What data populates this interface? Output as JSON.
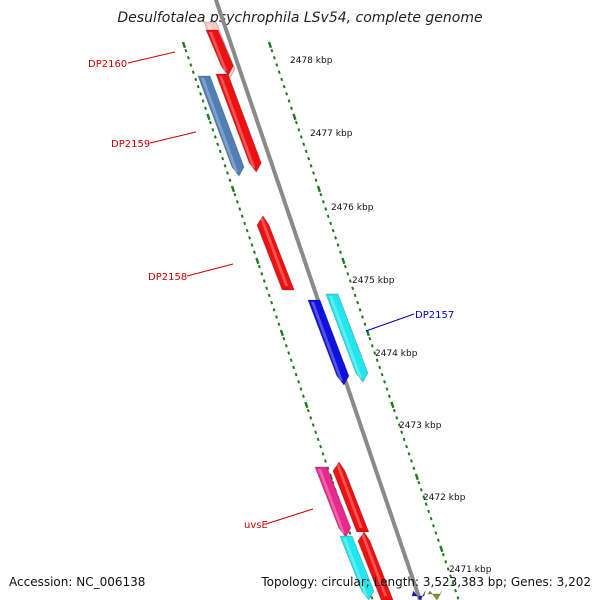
{
  "title": "Desulfotalea psychrophila LSv54, complete genome",
  "footer": {
    "accession": "Accession: NC_006138",
    "summary": "Topology: circular; Length: 3,523,383 bp; Genes: 3,202"
  },
  "colors": {
    "backbone": "#8a8a8a",
    "tick": "#1b7a1b",
    "red": "#ee1111",
    "blue": "#1111dd",
    "steel_blue": "#4f7fb5",
    "cyan": "#22e6ee",
    "magenta": "#e8288a",
    "olive": "#7a9a22",
    "label_red": "#cc0000",
    "label_blue": "#0000bb"
  },
  "scale_labels": [
    "2478 kbp",
    "2477 kbp",
    "2476 kbp",
    "2475 kbp",
    "2474 kbp",
    "2473 kbp",
    "2472 kbp",
    "2471 kbp"
  ],
  "gene_labels": [
    {
      "name": "DP2160",
      "color": "label_red"
    },
    {
      "name": "DP2159",
      "color": "label_red"
    },
    {
      "name": "DP2158",
      "color": "label_red"
    },
    {
      "name": "DP2157",
      "color": "label_blue"
    },
    {
      "name": "uvsE",
      "color": "label_red"
    }
  ]
}
